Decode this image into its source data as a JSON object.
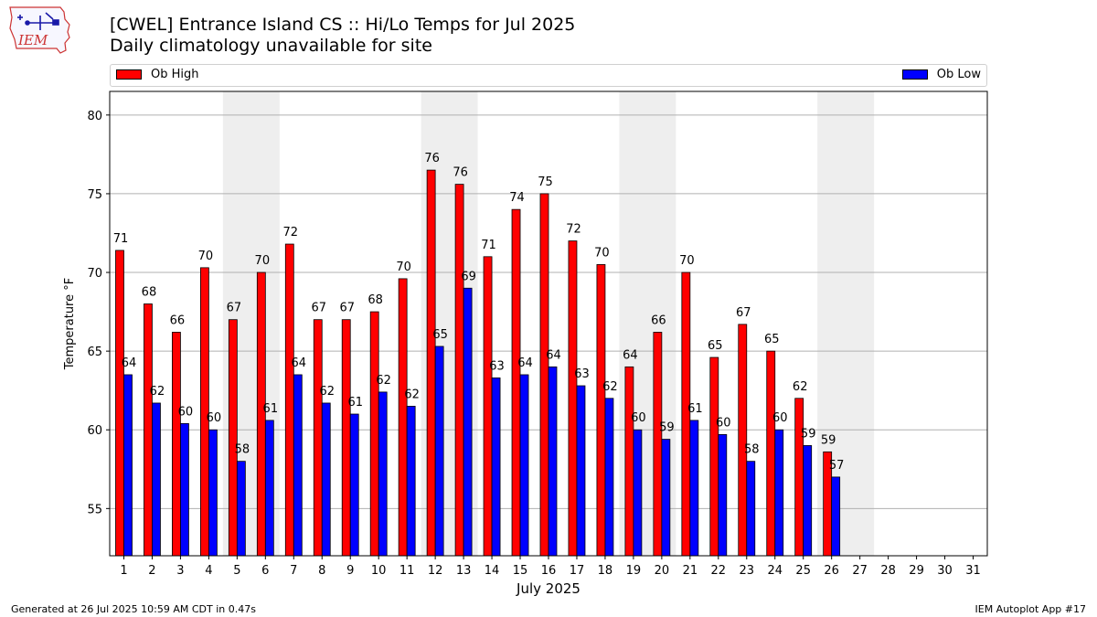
{
  "logo": {
    "text": "IEM",
    "icon": "iowa-state-outline-with-weather-station"
  },
  "title": "[CWEL] Entrance Island CS :: Hi/Lo Temps for Jul 2025",
  "subtitle": "Daily climatology unavailable for site",
  "footer": {
    "left": "Generated at 26 Jul 2025 10:59 AM CDT in 0.47s",
    "right": "IEM Autoplot App #17"
  },
  "colors": {
    "high": "#ff0000",
    "low": "#0000ff",
    "weekend_band": "#eeeeee",
    "grid": "#b0b0b0"
  },
  "chart_data": {
    "type": "bar",
    "xlabel": "July 2025",
    "ylabel": "Temperature °F",
    "ylim": [
      52,
      81.5
    ],
    "yticks": [
      55,
      60,
      65,
      70,
      75,
      80
    ],
    "grid": "horizontal",
    "legend_placement": "top",
    "categories": [
      "1",
      "2",
      "3",
      "4",
      "5",
      "6",
      "7",
      "8",
      "9",
      "10",
      "11",
      "12",
      "13",
      "14",
      "15",
      "16",
      "17",
      "18",
      "19",
      "20",
      "21",
      "22",
      "23",
      "24",
      "25",
      "26",
      "27",
      "28",
      "29",
      "30",
      "31"
    ],
    "weekend_bands": [
      [
        "5",
        "6"
      ],
      [
        "12",
        "13"
      ],
      [
        "19",
        "20"
      ],
      [
        "26",
        "27"
      ]
    ],
    "series": [
      {
        "name": "Ob High",
        "values": [
          71.4,
          68.0,
          66.2,
          70.3,
          67.0,
          70.0,
          71.8,
          67.0,
          67.0,
          67.5,
          69.6,
          76.5,
          75.6,
          71.0,
          74.0,
          75.0,
          72.0,
          70.5,
          64.0,
          66.2,
          70.0,
          64.6,
          66.7,
          65.0,
          62.0,
          58.6,
          null,
          null,
          null,
          null,
          null
        ],
        "labels": [
          "71",
          "68",
          "66",
          "70",
          "67",
          "70",
          "72",
          "67",
          "67",
          "68",
          "70",
          "76",
          "76",
          "71",
          "74",
          "75",
          "72",
          "70",
          "64",
          "66",
          "70",
          "65",
          "67",
          "65",
          "62",
          "59",
          "",
          "",
          "",
          "",
          ""
        ]
      },
      {
        "name": "Ob Low",
        "values": [
          63.5,
          61.7,
          60.4,
          60.0,
          58.0,
          60.6,
          63.5,
          61.7,
          61.0,
          62.4,
          61.5,
          65.3,
          69.0,
          63.3,
          63.5,
          64.0,
          62.8,
          62.0,
          60.0,
          59.4,
          60.6,
          59.7,
          58.0,
          60.0,
          59.0,
          57.0,
          null,
          null,
          null,
          null,
          null
        ],
        "labels": [
          "64",
          "62",
          "60",
          "60",
          "58",
          "61",
          "64",
          "62",
          "61",
          "62",
          "62",
          "65",
          "69",
          "63",
          "64",
          "64",
          "63",
          "62",
          "60",
          "59",
          "61",
          "60",
          "58",
          "60",
          "59",
          "57",
          "",
          "",
          "",
          "",
          ""
        ]
      }
    ]
  }
}
